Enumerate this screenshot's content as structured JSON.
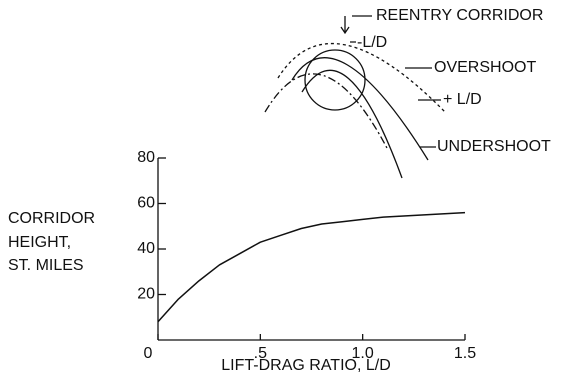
{
  "chart_data": {
    "type": "line",
    "ylabel": [
      "CORRIDOR",
      "HEIGHT,",
      "ST. MILES"
    ],
    "xlabel": "LIFT-DRAG RATIO, L/D",
    "x": [
      0,
      0.1,
      0.2,
      0.3,
      0.4,
      0.5,
      0.6,
      0.7,
      0.8,
      0.9,
      1.0,
      1.1,
      1.2,
      1.3,
      1.4,
      1.5
    ],
    "y": [
      8,
      18,
      26,
      33,
      38,
      43,
      46,
      49,
      51,
      52,
      53,
      54,
      54.5,
      55,
      55.5,
      56
    ],
    "color": "#111111",
    "xlim": [
      0,
      1.5
    ],
    "ylim": [
      0,
      80
    ],
    "xticks": [
      0,
      {
        "value": 0.5,
        "label": ".5"
      },
      {
        "value": 1,
        "label": "1.0"
      },
      {
        "value": 1.5,
        "label": "1.5"
      }
    ],
    "yticks": [
      20,
      40,
      60,
      80
    ],
    "grid": false,
    "diagram_labels": [
      "REENTRY CORRIDOR",
      "-L/D",
      "OVERSHOOT",
      "+ L/D",
      "UNDERSHOOT"
    ]
  }
}
